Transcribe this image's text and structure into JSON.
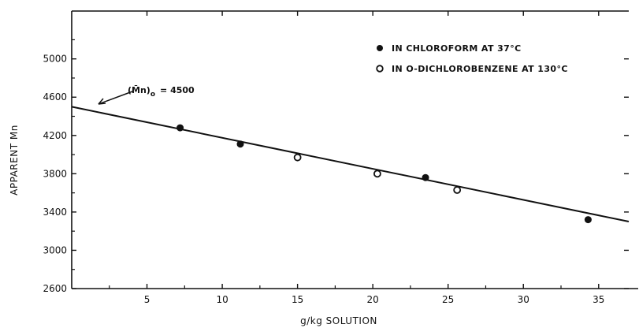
{
  "chart_data": {
    "type": "scatter",
    "xlabel": "g/kg SOLUTION",
    "ylabel": "APPARENT Mn",
    "xlim": [
      0,
      37
    ],
    "ylim": [
      2600,
      5500
    ],
    "x_ticks": [
      5,
      10,
      15,
      20,
      25,
      30,
      35
    ],
    "y_ticks": [
      2600,
      3000,
      3400,
      3800,
      4200,
      4600,
      5000
    ],
    "grid": false,
    "legend_position": "top-right",
    "series": [
      {
        "name": "IN CHLOROFORM AT 37°C",
        "marker": "filled-circle",
        "color": "#111111",
        "points": [
          {
            "x": 7.2,
            "y": 4280
          },
          {
            "x": 11.2,
            "y": 4110
          },
          {
            "x": 23.5,
            "y": 3760
          },
          {
            "x": 34.3,
            "y": 3320
          }
        ]
      },
      {
        "name": "IN O-DICHLOROBENZENE AT 130°C",
        "marker": "open-circle",
        "color": "#111111",
        "points": [
          {
            "x": 15.0,
            "y": 3970
          },
          {
            "x": 20.3,
            "y": 3800
          },
          {
            "x": 25.6,
            "y": 3630
          }
        ]
      }
    ],
    "fit_line": {
      "x0": 0,
      "y0": 4500,
      "x1": 37,
      "y1": 3300
    },
    "annotation": {
      "prefix": "(M̄n)",
      "subscript": "o",
      "value": "= 4500",
      "x": 0,
      "y": 4500
    }
  }
}
